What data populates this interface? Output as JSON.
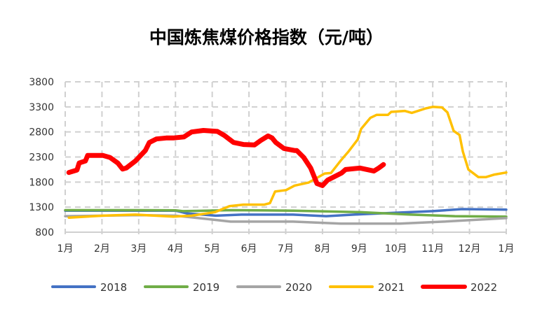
{
  "chart_data": {
    "type": "line",
    "title": "中国炼焦煤价格指数（元/吨）",
    "xlabel": "",
    "ylabel": "",
    "ylim": [
      800,
      3800
    ],
    "yticks": [
      800,
      1300,
      1800,
      2300,
      2800,
      3300,
      3800
    ],
    "xlim": [
      1,
      13
    ],
    "xticks": [
      "1月",
      "2月",
      "3月",
      "4月",
      "5月",
      "6月",
      "7月",
      "8月",
      "9月",
      "10月",
      "11月",
      "12月",
      "1月"
    ],
    "grid": true,
    "legend_position": "bottom",
    "series": [
      {
        "name": "2018",
        "color": "#4472c4",
        "width": 3.5,
        "x": [
          1.0,
          4.0,
          4.3,
          5.1,
          5.8,
          7.2,
          8.1,
          9.1,
          11.0,
          11.8,
          13.0
        ],
        "y": [
          1230,
          1230,
          1175,
          1130,
          1150,
          1150,
          1120,
          1160,
          1220,
          1260,
          1250
        ]
      },
      {
        "name": "2019",
        "color": "#70ad47",
        "width": 3.5,
        "x": [
          1.0,
          3.0,
          4.0,
          4.2,
          4.6,
          5.5,
          7.2,
          9.0,
          10.4,
          11.6,
          13.0
        ],
        "y": [
          1240,
          1240,
          1235,
          1220,
          1225,
          1240,
          1230,
          1200,
          1150,
          1120,
          1110
        ]
      },
      {
        "name": "2020",
        "color": "#a5a5a5",
        "width": 3.5,
        "x": [
          1.0,
          3.0,
          4.0,
          4.9,
          5.5,
          7.2,
          8.5,
          10.1,
          11.3,
          13.0
        ],
        "y": [
          1120,
          1140,
          1130,
          1060,
          1010,
          1010,
          970,
          970,
          1010,
          1080
        ]
      },
      {
        "name": "2021",
        "color": "#ffc000",
        "width": 3.5,
        "x": [
          1.1,
          2.03,
          2.91,
          3.94,
          4.44,
          5.08,
          5.47,
          5.85,
          6.42,
          6.57,
          6.71,
          7.01,
          7.24,
          7.62,
          8.06,
          8.23,
          8.52,
          8.71,
          8.96,
          9.05,
          9.3,
          9.47,
          9.78,
          9.87,
          10.24,
          10.43,
          10.81,
          11.0,
          11.25,
          11.4,
          11.57,
          11.73,
          11.82,
          11.97,
          12.24,
          12.45,
          12.68,
          13.0
        ],
        "y": [
          1090,
          1130,
          1150,
          1110,
          1130,
          1200,
          1320,
          1350,
          1350,
          1380,
          1610,
          1640,
          1730,
          1790,
          1970,
          1980,
          2250,
          2410,
          2650,
          2860,
          3080,
          3140,
          3140,
          3200,
          3220,
          3180,
          3270,
          3300,
          3290,
          3190,
          2820,
          2740,
          2410,
          2050,
          1900,
          1900,
          1950,
          1990
        ]
      },
      {
        "name": "2022",
        "color": "#ff0000",
        "width": 7,
        "x": [
          1.1,
          1.32,
          1.38,
          1.55,
          1.61,
          2.03,
          2.22,
          2.43,
          2.56,
          2.66,
          2.91,
          3.18,
          3.29,
          3.48,
          3.75,
          3.94,
          4.23,
          4.44,
          4.76,
          5.14,
          5.33,
          5.58,
          5.85,
          6.15,
          6.32,
          6.52,
          6.63,
          6.73,
          6.95,
          7.24,
          7.3,
          7.49,
          7.68,
          7.85,
          8.0,
          8.14,
          8.52,
          8.63,
          9.02,
          9.4,
          9.53,
          9.66
        ],
        "y": [
          1990,
          2040,
          2180,
          2220,
          2330,
          2330,
          2290,
          2180,
          2060,
          2080,
          2220,
          2430,
          2590,
          2660,
          2680,
          2680,
          2700,
          2800,
          2830,
          2810,
          2730,
          2590,
          2550,
          2540,
          2630,
          2720,
          2680,
          2590,
          2470,
          2430,
          2430,
          2290,
          2080,
          1770,
          1730,
          1840,
          1980,
          2050,
          2080,
          2020,
          2080,
          2150
        ]
      }
    ]
  }
}
